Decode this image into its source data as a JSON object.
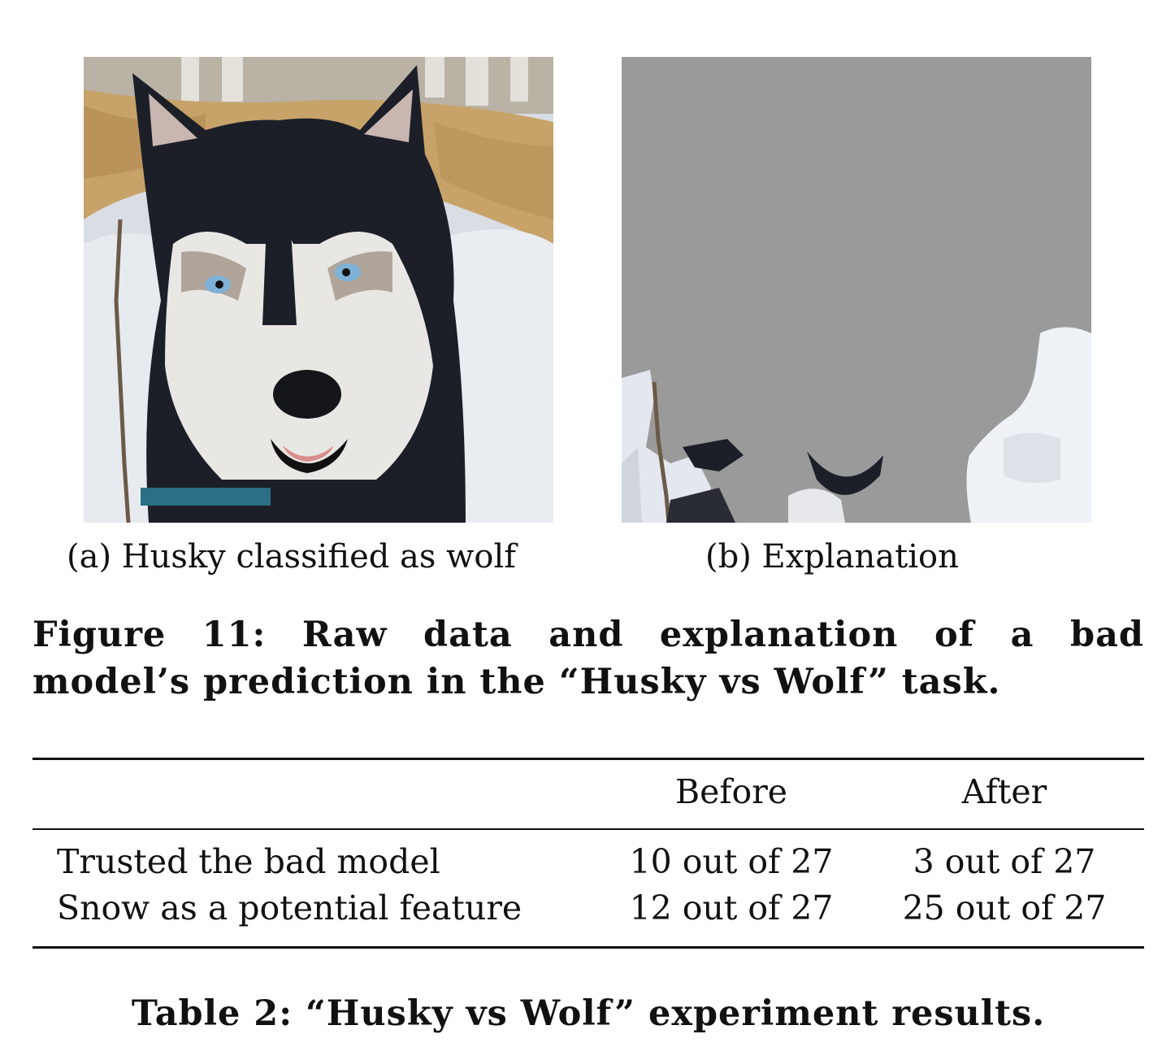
{
  "figure": {
    "subfigures": [
      {
        "label": "(a) Husky classified as wolf",
        "image": "husky-photo"
      },
      {
        "label": "(b) Explanation",
        "image": "explanation-mask"
      }
    ],
    "caption_line1": "Figure 11:  Raw data and explanation of a bad",
    "caption_line2": "model’s prediction in the “Husky vs Wolf” task."
  },
  "table": {
    "headers": [
      "",
      "Before",
      "After"
    ],
    "rows": [
      [
        "Trusted the bad model",
        "10 out of 27",
        "3 out of 27"
      ],
      [
        "Snow as a potential feature",
        "12 out of 27",
        "25 out of 27"
      ]
    ],
    "caption": "Table 2: “Husky vs Wolf” experiment results."
  },
  "colors": {
    "mask_gray": "#9a9a9a",
    "snow": "#eef2f6",
    "fur_dark": "#1c1f28"
  }
}
